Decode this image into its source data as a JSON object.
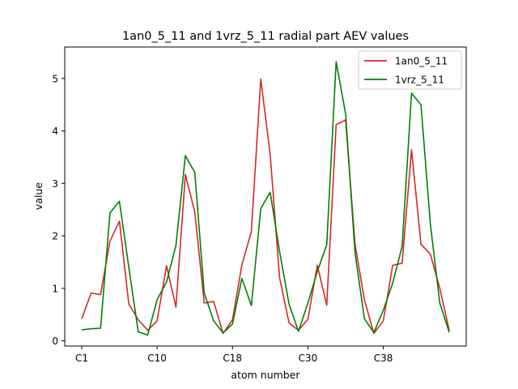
{
  "chart_data": {
    "type": "line",
    "title": "1an0_5_11 and 1vrz_5_11 radial part AEV values",
    "xlabel": "atom number",
    "ylabel": "value",
    "xtick_labels": [
      "C1",
      "C10",
      "C18",
      "C30",
      "C38"
    ],
    "xtick_indices": [
      0,
      8,
      16,
      24,
      32
    ],
    "yticks": [
      0,
      1,
      2,
      3,
      4,
      5
    ],
    "ylim": [
      -0.1,
      5.6
    ],
    "xlim": [
      -1.8,
      40.8
    ],
    "grid": false,
    "legend_position": "top-right",
    "series": [
      {
        "name": "1an0_5_11",
        "color": "#d62728",
        "values": [
          0.42,
          0.91,
          0.88,
          1.9,
          2.28,
          0.7,
          0.4,
          0.2,
          0.38,
          1.43,
          0.64,
          3.17,
          2.45,
          0.72,
          0.75,
          0.14,
          0.4,
          1.45,
          2.08,
          4.99,
          3.55,
          1.2,
          0.34,
          0.2,
          0.41,
          1.44,
          0.68,
          4.12,
          4.21,
          1.85,
          0.78,
          0.14,
          0.38,
          1.44,
          1.48,
          3.64,
          1.84,
          1.65,
          1.0,
          0.2
        ]
      },
      {
        "name": "1vrz_5_11",
        "color": "#008000",
        "values": [
          0.21,
          0.23,
          0.24,
          2.44,
          2.66,
          1.4,
          0.17,
          0.11,
          0.78,
          1.12,
          1.82,
          3.53,
          3.21,
          0.91,
          0.38,
          0.15,
          0.32,
          1.19,
          0.67,
          2.52,
          2.83,
          1.7,
          0.7,
          0.18,
          0.72,
          1.32,
          1.83,
          5.32,
          4.33,
          1.68,
          0.42,
          0.16,
          0.58,
          1.1,
          1.8,
          4.72,
          4.5,
          2.22,
          0.72,
          0.16
        ]
      }
    ]
  }
}
